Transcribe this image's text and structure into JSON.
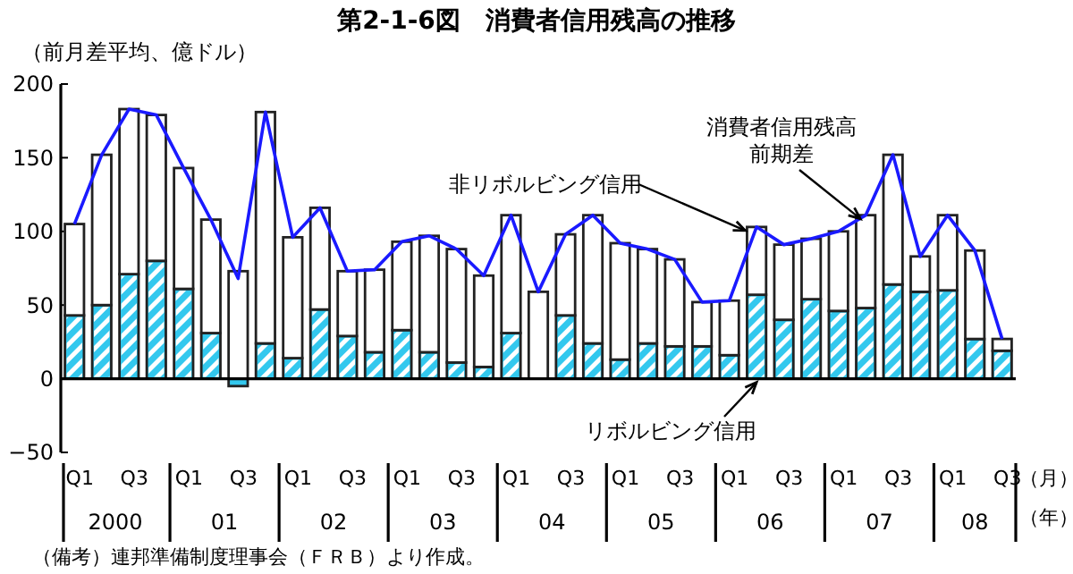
{
  "chart_data": {
    "type": "bar",
    "title": "第2-1-6図　消費者信用残高の推移",
    "ylabel": "（前月差平均、億ドル）",
    "categories": [
      "Q1",
      null,
      "Q3",
      null,
      "Q1",
      null,
      "Q3",
      null,
      "Q1",
      null,
      "Q3",
      null,
      "Q1",
      null,
      "Q3",
      null,
      "Q1",
      null,
      "Q3",
      null,
      "Q1",
      null,
      "Q3",
      null,
      "Q1",
      null,
      "Q3",
      null,
      "Q1",
      null,
      "Q3",
      null,
      "Q1",
      null,
      "Q3"
    ],
    "stacked": true,
    "ylim": [
      -50,
      200
    ],
    "yticks": [
      -50,
      0,
      50,
      100,
      150,
      200
    ],
    "legend": false,
    "series": [
      {
        "name": "リボルビング信用",
        "color": "#33c8ee",
        "values": [
          43,
          50,
          71,
          80,
          61,
          31,
          -5,
          24,
          14,
          47,
          29,
          18,
          33,
          18,
          11,
          8,
          31,
          0,
          43,
          24,
          13,
          24,
          22,
          22,
          16,
          57,
          40,
          54,
          46,
          48,
          64,
          59,
          60,
          27,
          19
        ]
      },
      {
        "name": "非リボルビング信用",
        "color": "#ffffff",
        "values": [
          62,
          102,
          112,
          99,
          82,
          77,
          73,
          157,
          82,
          69,
          44,
          56,
          60,
          79,
          77,
          62,
          80,
          59,
          55,
          87,
          79,
          64,
          59,
          30,
          37,
          46,
          51,
          41,
          54,
          63,
          88,
          24,
          51,
          60,
          8
        ]
      },
      {
        "name": "消費者信用残高前期差",
        "type": "line",
        "color": "#1a1aff",
        "marker": "none",
        "values": [
          105,
          152,
          183,
          179,
          143,
          108,
          68,
          181,
          96,
          116,
          73,
          74,
          93,
          97,
          88,
          70,
          111,
          59,
          98,
          111,
          92,
          88,
          81,
          52,
          53,
          103,
          91,
          95,
          100,
          111,
          152,
          83,
          111,
          87,
          27
        ]
      }
    ],
    "annotations": [
      "2000",
      "01",
      "02",
      "03",
      "04",
      "05",
      "06",
      "07",
      "08",
      "（月）",
      "（年）",
      "（備考）連邦準備制度理事会（ＦＲＢ）より作成。"
    ]
  }
}
